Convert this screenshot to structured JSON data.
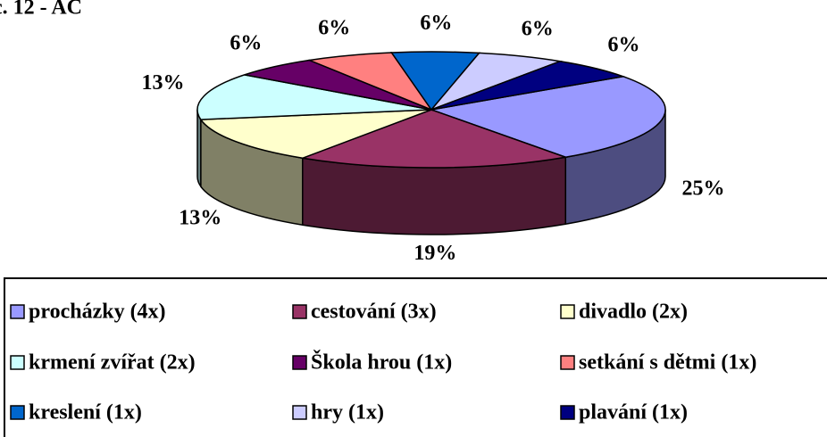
{
  "chart_data": {
    "type": "pie3d",
    "title": "c. 12 - AC",
    "categories": [
      "procházky (4x)",
      "cestování (3x)",
      "divadlo (2x)",
      "krmení zvířat (2x)",
      "Škola hrou (1x)",
      "setkání s dětmi (1x)",
      "kreslení (1x)",
      "hry (1x)",
      "plavání (1x)"
    ],
    "values": [
      25,
      19,
      13,
      13,
      6,
      6,
      6,
      6,
      6
    ],
    "value_labels": [
      "25%",
      "19%",
      "13%",
      "13%",
      "6%",
      "6%",
      "6%",
      "6%",
      "6%"
    ],
    "colors": [
      "#9999ff",
      "#993366",
      "#ffffcc",
      "#ccffff",
      "#660066",
      "#ff8080",
      "#0066cc",
      "#ccccff",
      "#000080"
    ],
    "legend": "bottom"
  }
}
